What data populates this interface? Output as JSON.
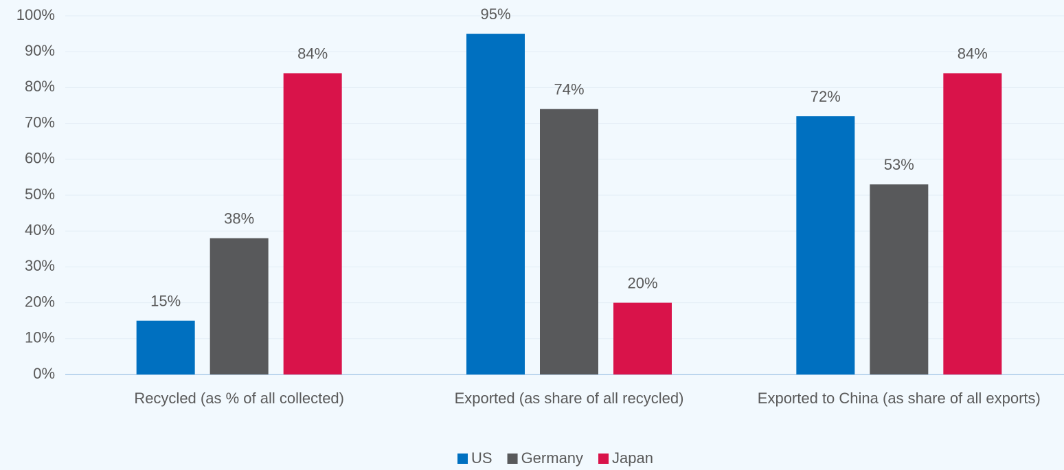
{
  "chart_data": {
    "type": "bar",
    "categories": [
      "Recycled (as % of all collected)",
      "Exported (as share of all recycled)",
      "Exported to China (as share of all exports)"
    ],
    "series": [
      {
        "name": "US",
        "color": "#0070c0",
        "values": [
          15,
          95,
          72
        ],
        "value_labels": [
          "15%",
          "95%",
          "72%"
        ]
      },
      {
        "name": "Germany",
        "color": "#58595b",
        "values": [
          38,
          74,
          53
        ],
        "value_labels": [
          "38%",
          "74%",
          "53%"
        ]
      },
      {
        "name": "Japan",
        "color": "#d9134a",
        "values": [
          84,
          20,
          84
        ],
        "value_labels": [
          "84%",
          "20%",
          "84%"
        ]
      }
    ],
    "ylim": [
      0,
      100
    ],
    "yticks": [
      {
        "value": 0,
        "label": "0%"
      },
      {
        "value": 10,
        "label": "10%"
      },
      {
        "value": 20,
        "label": "20%"
      },
      {
        "value": 30,
        "label": "30%"
      },
      {
        "value": 40,
        "label": "40%"
      },
      {
        "value": 50,
        "label": "50%"
      },
      {
        "value": 60,
        "label": "60%"
      },
      {
        "value": 70,
        "label": "70%"
      },
      {
        "value": 80,
        "label": "80%"
      },
      {
        "value": 90,
        "label": "90%"
      },
      {
        "value": 100,
        "label": "100%"
      }
    ],
    "grid": true,
    "legend": "bottom"
  }
}
